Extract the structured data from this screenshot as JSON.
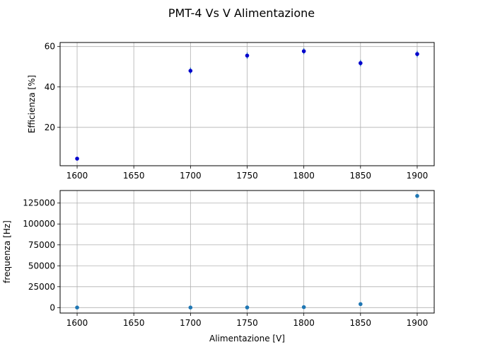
{
  "figure": {
    "title": "PMT-4 Vs V Alimentazione"
  },
  "colors": {
    "efficiency_marker": "#0000cc",
    "frequency_marker": "#1f77b4",
    "grid": "#b0b0b0",
    "error_bar": "#1f77b4"
  },
  "chart_data": [
    {
      "type": "scatter",
      "name": "efficiency",
      "xlabel": "",
      "ylabel": "Efficienza [%]",
      "xlim": [
        1585,
        1915
      ],
      "ylim": [
        1,
        62
      ],
      "x_ticks": [
        1600,
        1650,
        1700,
        1750,
        1800,
        1850,
        1900
      ],
      "y_ticks": [
        20,
        40,
        60
      ],
      "grid": true,
      "error_bars": true,
      "x": [
        1600,
        1700,
        1750,
        1800,
        1850,
        1900
      ],
      "y": [
        4.5,
        48,
        55.5,
        57.7,
        51.8,
        56.3
      ],
      "yerr": [
        0.8,
        1.6,
        1.6,
        1.5,
        1.6,
        1.6
      ]
    },
    {
      "type": "scatter",
      "name": "frequency",
      "xlabel": "Alimentazione [V]",
      "ylabel": "frequenza [Hz]",
      "xlim": [
        1585,
        1915
      ],
      "ylim": [
        -6500,
        140000
      ],
      "x_ticks": [
        1600,
        1650,
        1700,
        1750,
        1800,
        1850,
        1900
      ],
      "y_ticks": [
        0,
        25000,
        50000,
        75000,
        100000,
        125000
      ],
      "grid": true,
      "x": [
        1600,
        1700,
        1750,
        1800,
        1850,
        1900
      ],
      "y": [
        100,
        100,
        200,
        600,
        4200,
        133500
      ]
    }
  ]
}
